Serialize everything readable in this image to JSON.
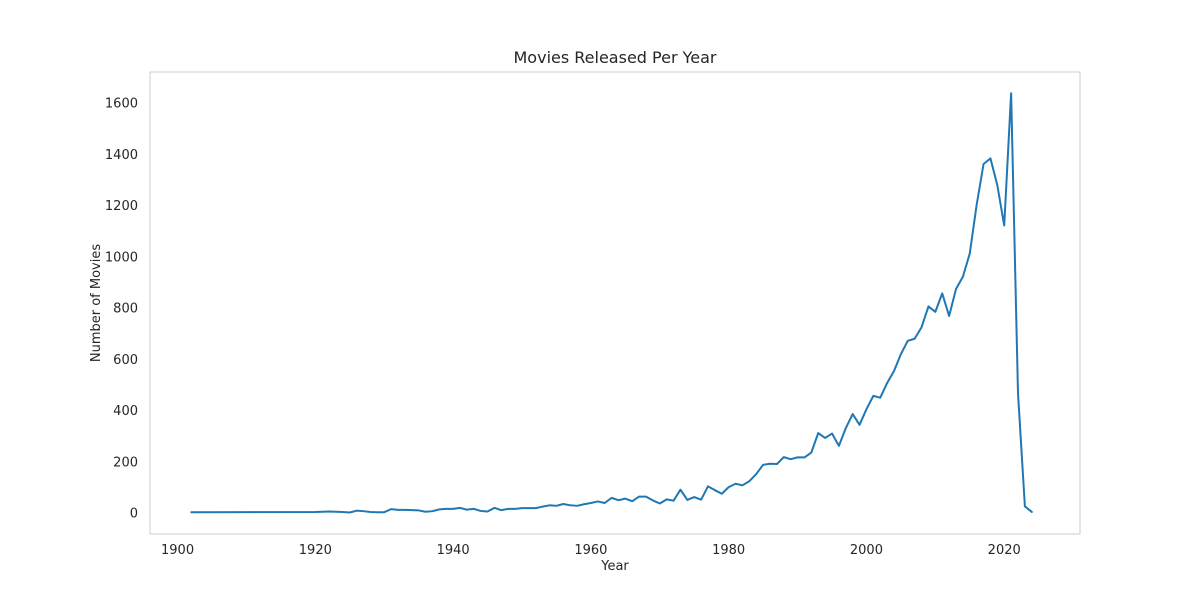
{
  "chart_data": {
    "type": "line",
    "title": "Movies Released Per Year",
    "xlabel": "Year",
    "ylabel": "Number of Movies",
    "xlim": [
      1896,
      2031
    ],
    "ylim": [
      -83,
      1720
    ],
    "x_ticks": [
      1900,
      1920,
      1940,
      1960,
      1980,
      2000,
      2020
    ],
    "y_ticks": [
      0,
      200,
      400,
      600,
      800,
      1000,
      1200,
      1400,
      1600
    ],
    "grid": false,
    "legend": "none",
    "series": [
      {
        "color": "#1f77b4",
        "x": [
          1902,
          1920,
          1922,
          1924,
          1925,
          1926,
          1927,
          1928,
          1929,
          1930,
          1931,
          1932,
          1933,
          1934,
          1935,
          1936,
          1937,
          1938,
          1939,
          1940,
          1941,
          1942,
          1943,
          1944,
          1945,
          1946,
          1947,
          1948,
          1949,
          1950,
          1951,
          1952,
          1953,
          1954,
          1955,
          1956,
          1957,
          1958,
          1959,
          1960,
          1961,
          1962,
          1963,
          1964,
          1965,
          1966,
          1967,
          1968,
          1969,
          1970,
          1971,
          1972,
          1973,
          1974,
          1975,
          1976,
          1977,
          1978,
          1979,
          1980,
          1981,
          1982,
          1983,
          1984,
          1985,
          1986,
          1987,
          1988,
          1989,
          1990,
          1991,
          1992,
          1993,
          1994,
          1995,
          1996,
          1997,
          1998,
          1999,
          2000,
          2001,
          2002,
          2003,
          2004,
          2005,
          2006,
          2007,
          2008,
          2009,
          2010,
          2011,
          2012,
          2013,
          2014,
          2015,
          2016,
          2017,
          2018,
          2019,
          2020,
          2021,
          2022,
          2023,
          2024
        ],
        "y": [
          2,
          3,
          5,
          3,
          1,
          8,
          6,
          3,
          2,
          2,
          14,
          11,
          11,
          10,
          9,
          4,
          6,
          13,
          15,
          15,
          19,
          12,
          15,
          7,
          5,
          19,
          10,
          15,
          15,
          18,
          18,
          18,
          24,
          29,
          27,
          34,
          29,
          27,
          33,
          38,
          44,
          38,
          58,
          49,
          55,
          45,
          63,
          63,
          48,
          36,
          52,
          47,
          90,
          50,
          61,
          51,
          103,
          88,
          74,
          100,
          113,
          107,
          123,
          151,
          187,
          191,
          190,
          217,
          209,
          216,
          216,
          235,
          311,
          292,
          309,
          261,
          330,
          385,
          343,
          404,
          456,
          449,
          506,
          553,
          619,
          671,
          679,
          724,
          805,
          784,
          856,
          768,
          873,
          921,
          1012,
          1202,
          1361,
          1383,
          1278,
          1121,
          1637,
          466,
          25,
          3
        ]
      }
    ]
  }
}
